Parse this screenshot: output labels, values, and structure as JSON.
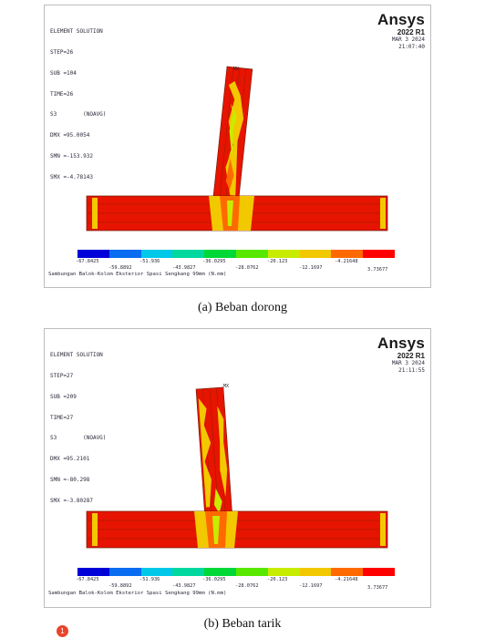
{
  "panels": [
    {
      "id": "a",
      "info_lines": [
        "ELEMENT SOLUTION",
        "STEP=26",
        "SUB =104",
        "TIME=26",
        "S3        (NOAVG)",
        "DMX =95.0054",
        "SMN =-153.932",
        "SMX =-4.78143"
      ],
      "brand": {
        "name": "Ansys",
        "version": "2022 R1",
        "date": "MAR  3 2024",
        "time": "21:07:40"
      },
      "mx_label": "MX",
      "legend_top": [
        "-67.8425",
        "-51.936",
        "-36.0295",
        "-20.123",
        "-4.21648"
      ],
      "legend_bottom": [
        "-59.8892",
        "-43.9827",
        "-28.0762",
        "-12.1697",
        "3.73677"
      ],
      "footer": "Sambungan Balok-Kolom Eksterior Spasi Sengkang 99mm (N.mm)"
    },
    {
      "id": "b",
      "info_lines": [
        "ELEMENT SOLUTION",
        "STEP=27",
        "SUB =209",
        "TIME=27",
        "S3        (NOAVG)",
        "DMX =95.2101",
        "SMN =-80.298",
        "SMX =-3.80287"
      ],
      "brand": {
        "name": "Ansys",
        "version": "2022 R1",
        "date": "MAR  3 2024",
        "time": "21:11:55"
      },
      "mx_label": "MX",
      "legend_top": [
        "-67.8425",
        "-51.936",
        "-36.0295",
        "-20.123",
        "-4.21648"
      ],
      "legend_bottom": [
        "-59.8892",
        "-43.9827",
        "-28.0762",
        "-12.1697",
        "3.73677"
      ],
      "footer": "Sambungan Balok-Kolom Eksterior Spasi Sengkang 99mm (N.mm)"
    }
  ],
  "legend_colors": [
    "#0000d8",
    "#0a6cf0",
    "#00c8e8",
    "#00d8a0",
    "#00d838",
    "#58e800",
    "#c8ec00",
    "#f2c800",
    "#ff6a00",
    "#ff0000"
  ],
  "captions": [
    "(a) Beban dorong",
    "(b) Beban tarik"
  ],
  "badge": "1"
}
